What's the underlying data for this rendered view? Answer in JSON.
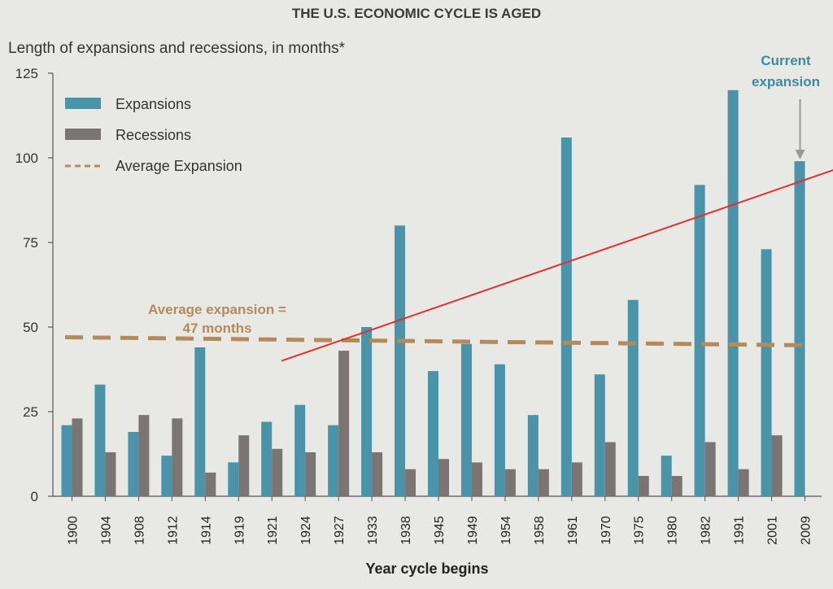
{
  "chart_data": {
    "type": "bar",
    "title": "THE U.S. ECONOMIC CYCLE IS AGED",
    "subtitle": "Length of expansions and recessions, in months*",
    "xlabel": "Year cycle begins",
    "ylabel": "",
    "ylim": [
      0,
      125
    ],
    "yticks": [
      0,
      25,
      50,
      75,
      100,
      125
    ],
    "categories": [
      "1900",
      "1904",
      "1908",
      "1912",
      "1914",
      "1919",
      "1921",
      "1924",
      "1927",
      "1933",
      "1938",
      "1945",
      "1949",
      "1954",
      "1958",
      "1961",
      "1970",
      "1975",
      "1980",
      "1982",
      "1991",
      "2001",
      "2009"
    ],
    "series": [
      {
        "name": "Expansions",
        "color": "#4a93a8",
        "values": [
          21,
          33,
          19,
          12,
          44,
          10,
          22,
          27,
          21,
          50,
          80,
          37,
          45,
          39,
          24,
          106,
          36,
          58,
          12,
          92,
          120,
          73,
          99
        ]
      },
      {
        "name": "Recessions",
        "color": "#7a7572",
        "values": [
          23,
          13,
          24,
          23,
          7,
          18,
          14,
          13,
          43,
          13,
          8,
          11,
          10,
          8,
          8,
          10,
          16,
          6,
          6,
          16,
          8,
          18,
          0
        ]
      }
    ],
    "average_line": {
      "name": "Average Expansion",
      "value": 47,
      "color": "#b58a5a",
      "style": "dashed"
    },
    "annotations": {
      "average_label_line1": "Average expansion =",
      "average_label_line2": "47 months",
      "current_label_line1": "Current",
      "current_label_line2": "expansion"
    },
    "legend": {
      "placement": "top-left",
      "items": [
        "Expansions",
        "Recessions",
        "Average Expansion"
      ]
    },
    "overlay_trend_line": {
      "color": "#e03030",
      "x_from": "1927",
      "x_to": "2009",
      "y_from": 40,
      "y_to": 92
    },
    "grid": false,
    "axis_color": "#555555",
    "arrow_color": "#999999",
    "accent_text_color": "#3f8aa0"
  }
}
